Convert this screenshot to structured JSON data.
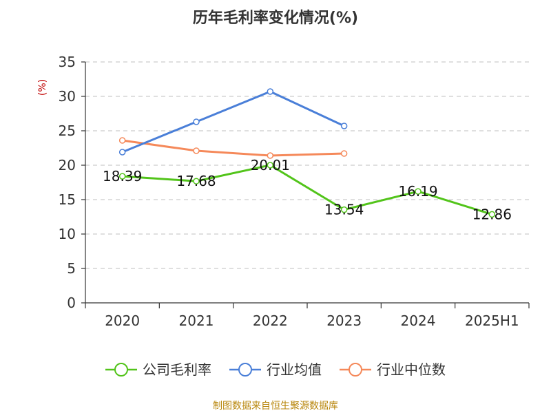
{
  "chart_data": {
    "type": "line",
    "title": "历年毛利率变化情况(%)",
    "y_unit": "(%)",
    "categories": [
      "2020",
      "2021",
      "2022",
      "2023",
      "2024",
      "2025H1"
    ],
    "ylim": [
      0,
      35
    ],
    "yticks": [
      "0",
      "5",
      "10",
      "15",
      "20",
      "25",
      "30",
      "35"
    ],
    "grid": true,
    "legend_position": "bottom",
    "series": [
      {
        "name": "公司毛利率",
        "color": "#52c41a",
        "values": [
          18.39,
          17.68,
          20.01,
          13.54,
          16.19,
          12.86
        ],
        "data_labels": [
          "18.39",
          "17.68",
          "20.01",
          "13.54",
          "16.19",
          "12.86"
        ]
      },
      {
        "name": "行业均值",
        "color": "#4a7fd8",
        "values": [
          21.9,
          26.3,
          30.7,
          25.7,
          null,
          null
        ]
      },
      {
        "name": "行业中位数",
        "color": "#f5895a",
        "values": [
          23.6,
          22.1,
          21.4,
          21.7,
          null,
          null
        ]
      }
    ],
    "source": "制图数据来自恒生聚源数据库"
  }
}
